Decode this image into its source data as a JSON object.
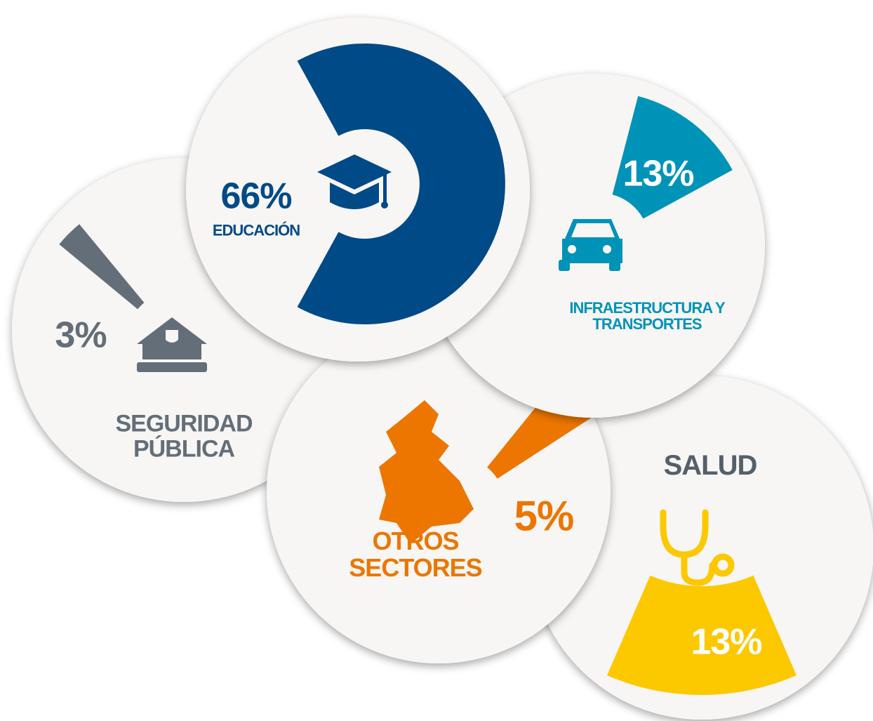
{
  "chart_data": {
    "type": "pie",
    "categories": [
      "EDUCACIÓN",
      "INFRAESTRUCTURA Y TRANSPORTES",
      "SEGURIDAD PÚBLICA",
      "OTROS SECTORES",
      "SALUD"
    ],
    "values": [
      66,
      13,
      3,
      5,
      13
    ],
    "value_labels": [
      "66%",
      "13%",
      "3%",
      "5%",
      "13%"
    ],
    "colors": [
      "#004a87",
      "#0093b8",
      "#646e78",
      "#ec7600",
      "#fcc800"
    ]
  }
}
